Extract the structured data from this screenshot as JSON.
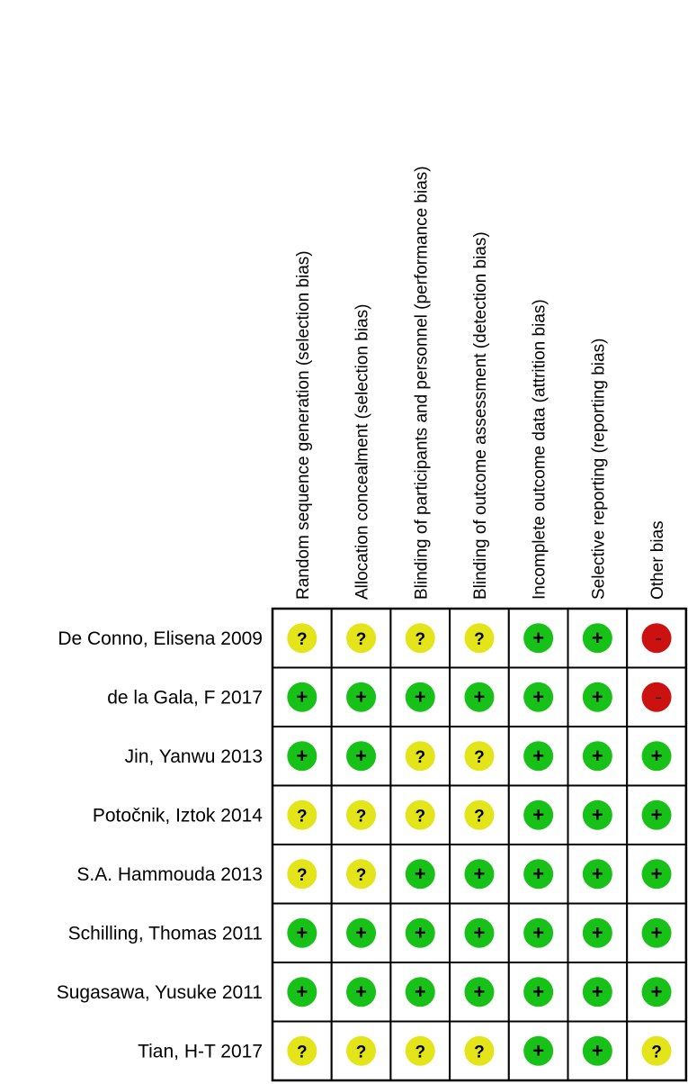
{
  "diagram": {
    "domains": [
      "Random sequence generation (selection bias)",
      "Allocation concealment (selection bias)",
      "Blinding of participants and personnel (performance bias)",
      "Blinding of outcome assessment (detection bias)",
      "Incomplete outcome data (attrition bias)",
      "Selective reporting (reporting bias)",
      "Other bias"
    ],
    "studies": [
      {
        "name": "De Conno, Elisena 2009",
        "ratings": [
          "unclear",
          "unclear",
          "unclear",
          "unclear",
          "low",
          "low",
          "high"
        ]
      },
      {
        "name": "de la Gala, F 2017",
        "ratings": [
          "low",
          "low",
          "low",
          "low",
          "low",
          "low",
          "high"
        ]
      },
      {
        "name": "Jin, Yanwu 2013",
        "ratings": [
          "low",
          "low",
          "unclear",
          "unclear",
          "low",
          "low",
          "low"
        ]
      },
      {
        "name": "Potočnik, Iztok  2014",
        "ratings": [
          "unclear",
          "unclear",
          "unclear",
          "unclear",
          "low",
          "low",
          "low"
        ]
      },
      {
        "name": "S.A. Hammouda 2013",
        "ratings": [
          "unclear",
          "unclear",
          "low",
          "low",
          "low",
          "low",
          "low"
        ]
      },
      {
        "name": "Schilling, Thomas 2011",
        "ratings": [
          "low",
          "low",
          "low",
          "low",
          "low",
          "low",
          "low"
        ]
      },
      {
        "name": "Sugasawa, Yusuke 2011",
        "ratings": [
          "low",
          "low",
          "low",
          "low",
          "low",
          "low",
          "low"
        ]
      },
      {
        "name": "Tian, H-T 2017",
        "ratings": [
          "unclear",
          "unclear",
          "unclear",
          "unclear",
          "low",
          "low",
          "unclear"
        ]
      }
    ],
    "rating_styles": {
      "low": {
        "symbol": "+",
        "color": "#18c118"
      },
      "unclear": {
        "symbol": "?",
        "color": "#e4e41a"
      },
      "high": {
        "symbol": "–",
        "color": "#cc1111"
      }
    }
  }
}
